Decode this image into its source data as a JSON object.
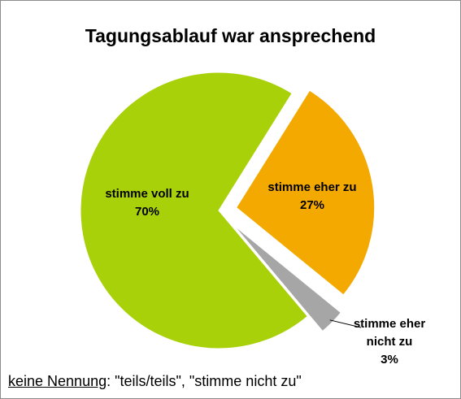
{
  "chart_data": {
    "type": "pie",
    "title": "Tagungsablauf war ansprechend",
    "categories": [
      "stimme voll zu",
      "stimme eher zu",
      "stimme eher nicht zu"
    ],
    "values": [
      70,
      27,
      3
    ],
    "value_labels": [
      "70%",
      "27%",
      "3%"
    ],
    "colors": [
      "#a9d10a",
      "#f4a900",
      "#a6a6a6"
    ],
    "footnote": {
      "label": "keine Nennung",
      "text": ": \"teils/teils\", \"stimme nicht zu\""
    }
  }
}
